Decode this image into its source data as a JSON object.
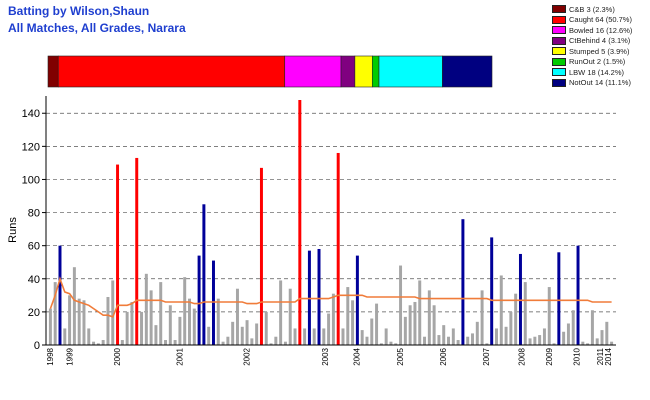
{
  "chart_data": {
    "type": "bar",
    "title": "Batting by Wilson,Shaun",
    "subtitle": "All Matches, All Grades, Narara",
    "ylabel": "Runs",
    "xlabel": "",
    "ylim": [
      0,
      148
    ],
    "yticks": [
      0,
      20,
      40,
      60,
      80,
      100,
      120,
      140
    ],
    "grid": "horizontal dashed",
    "year_labels": [
      "1998",
      "1999",
      "2000",
      "2001",
      "2002",
      "2003",
      "2004",
      "2005",
      "2006",
      "2007",
      "2008",
      "2009",
      "2010",
      "2011",
      "2014"
    ],
    "dismissal_breakdown": [
      {
        "label": "C&B 3 (2.3%)",
        "percent": 2.3,
        "color": "#800000"
      },
      {
        "label": "Caught 64 (50.7%)",
        "percent": 50.7,
        "color": "#ff0000"
      },
      {
        "label": "Bowled 16 (12.6%)",
        "percent": 12.6,
        "color": "#ff00ff"
      },
      {
        "label": "CtBehind 4 (3.1%)",
        "percent": 3.1,
        "color": "#800080"
      },
      {
        "label": "Stumped 5 (3.9%)",
        "percent": 3.9,
        "color": "#ffff00"
      },
      {
        "label": "RunOut 2 (1.5%)",
        "percent": 1.5,
        "color": "#00cc00"
      },
      {
        "label": "LBW 18 (14.2%)",
        "percent": 14.2,
        "color": "#00ffff"
      },
      {
        "label": "NotOut 14 (11.1%)",
        "percent": 11.1,
        "color": "#000080"
      }
    ],
    "series": [
      {
        "name": "Innings runs",
        "values": [
          22,
          38,
          60,
          10,
          30,
          47,
          28,
          27,
          10,
          2,
          1,
          3,
          29,
          39,
          109,
          3,
          20,
          26,
          113,
          20,
          43,
          33,
          12,
          38,
          3,
          24,
          3,
          17,
          41,
          28,
          22,
          54,
          85,
          11,
          51,
          28,
          2,
          5,
          14,
          34,
          11,
          15,
          4,
          13,
          107,
          20,
          1,
          5,
          39,
          2,
          34,
          10,
          148,
          10,
          57,
          10,
          58,
          10,
          19,
          31,
          116,
          10,
          35,
          27,
          54,
          9,
          5,
          16,
          25,
          1,
          10,
          2,
          1,
          48,
          17,
          24,
          26,
          39,
          5,
          33,
          24,
          6,
          12,
          5,
          10,
          3,
          76,
          5,
          7,
          14,
          33,
          1,
          65,
          10,
          42,
          11,
          20,
          31,
          55,
          38,
          4,
          5,
          6,
          10,
          35,
          1,
          56,
          8,
          13,
          21,
          60,
          2,
          1,
          21,
          4,
          9,
          14,
          2
        ],
        "highlight_colors": {
          "14": "#ff0000",
          "18": "#ff0000",
          "44": "#ff0000",
          "52": "#ff0000",
          "60": "#ff0000",
          "2": "#000099",
          "31": "#000099",
          "32": "#000099",
          "34": "#000099",
          "54": "#000099",
          "56": "#000099",
          "64": "#000099",
          "86": "#000099",
          "92": "#000099",
          "98": "#000099",
          "106": "#000099",
          "110": "#000099"
        }
      },
      {
        "name": "Average",
        "values": [
          22,
          30,
          40,
          32,
          31,
          27,
          26,
          25,
          24,
          22,
          20,
          18,
          18,
          17,
          24,
          24,
          24,
          25,
          27,
          27,
          27,
          27,
          27,
          27,
          26,
          26,
          26,
          26,
          26,
          26,
          25,
          25,
          26,
          26,
          26,
          26,
          26,
          26,
          26,
          26,
          26,
          25,
          25,
          25,
          26,
          26,
          26,
          26,
          26,
          26,
          26,
          26,
          28,
          28,
          28,
          28,
          28,
          28,
          28,
          29,
          30,
          30,
          30,
          30,
          30,
          30,
          29,
          29,
          29,
          29,
          29,
          29,
          29,
          29,
          29,
          29,
          29,
          28,
          28,
          28,
          28,
          28,
          28,
          28,
          28,
          28,
          28,
          28,
          28,
          28,
          28,
          28,
          27,
          27,
          27,
          27,
          27,
          27,
          27,
          27,
          27,
          27,
          27,
          27,
          27,
          27,
          27,
          27,
          27,
          27,
          27,
          27,
          27,
          26,
          26,
          26,
          26,
          26
        ]
      }
    ],
    "colors": {
      "bar_default": "#a6a6a6",
      "average_line": "#f07c3a",
      "grid": "#555555"
    }
  }
}
